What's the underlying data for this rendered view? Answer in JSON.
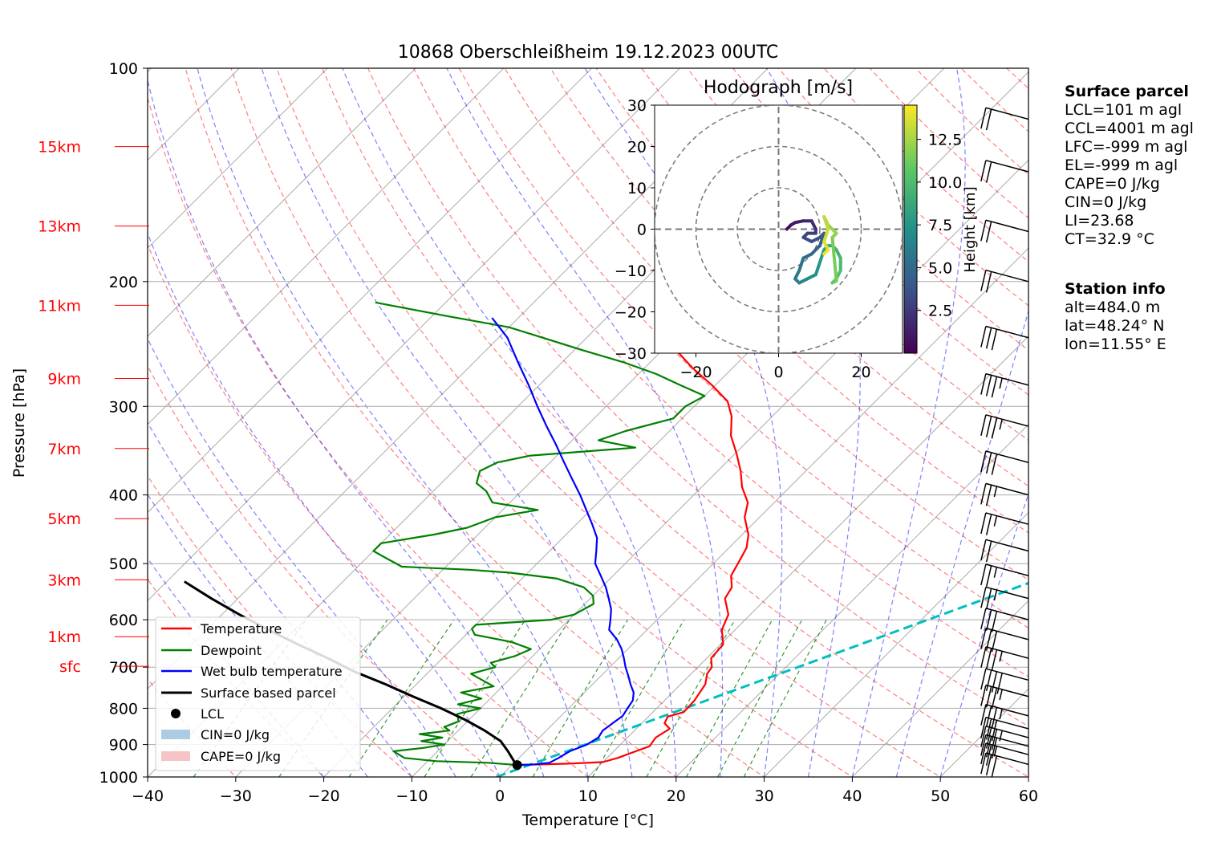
{
  "chart_data": [
    {
      "type": "line",
      "title": "10868 Oberschleißheim 19.12.2023 00UTC",
      "xlabel": "Temperature [°C]",
      "ylabel": "Pressure [hPa]",
      "xlim": [
        -40,
        60
      ],
      "ylim": [
        1000,
        100
      ],
      "y_scale": "log",
      "skew": true,
      "grid": true,
      "x_ticks": [
        "−40",
        "−30",
        "−20",
        "−10",
        "0",
        "10",
        "20",
        "30",
        "40",
        "50",
        "60"
      ],
      "y_ticks": [
        "100",
        "200",
        "300",
        "400",
        "500",
        "600",
        "700",
        "800",
        "900",
        "1000"
      ],
      "height_labels": [
        {
          "label": "15km",
          "p": 129
        },
        {
          "label": "13km",
          "p": 167
        },
        {
          "label": "11km",
          "p": 216
        },
        {
          "label": "9km",
          "p": 274
        },
        {
          "label": "7km",
          "p": 344
        },
        {
          "label": "5km",
          "p": 432
        },
        {
          "label": "3km",
          "p": 527
        },
        {
          "label": "1km",
          "p": 634
        },
        {
          "label": "sfc",
          "p": 698
        }
      ],
      "series": [
        {
          "name": "Temperature",
          "color": "#ff0000",
          "points": [
            [
              0.6,
              962
            ],
            [
              6,
              958
            ],
            [
              10,
              953
            ],
            [
              11.2,
              940
            ],
            [
              12.5,
              920
            ],
            [
              13.5,
              905
            ],
            [
              13.2,
              880
            ],
            [
              13.8,
              855
            ],
            [
              12.6,
              840
            ],
            [
              12.2,
              822
            ],
            [
              13.5,
              810
            ],
            [
              13.4,
              780
            ],
            [
              13.1,
              760
            ],
            [
              12.8,
              740
            ],
            [
              11.8,
              715
            ],
            [
              11.6,
              700
            ],
            [
              10.5,
              680
            ],
            [
              10.3,
              650
            ],
            [
              8.5,
              620
            ],
            [
              7.5,
              590
            ],
            [
              5.3,
              560
            ],
            [
              4.8,
              540
            ],
            [
              3.4,
              520
            ],
            [
              2.8,
              500
            ],
            [
              2.0,
              475
            ],
            [
              0.7,
              455
            ],
            [
              -1.7,
              430
            ],
            [
              -3.0,
              410
            ],
            [
              -5.4,
              390
            ],
            [
              -7.4,
              370
            ],
            [
              -9.8,
              350
            ],
            [
              -12.5,
              330
            ],
            [
              -14.6,
              310
            ],
            [
              -16.8,
              295
            ],
            [
              -20.4,
              280
            ],
            [
              -24.5,
              265
            ],
            [
              -28.4,
              250
            ]
          ]
        },
        {
          "name": "Dewpoint",
          "color": "#008000",
          "points": [
            [
              0.6,
              962
            ],
            [
              -3,
              955
            ],
            [
              -9,
              950
            ],
            [
              -13,
              940
            ],
            [
              -15,
              920
            ],
            [
              -12,
              910
            ],
            [
              -10,
              900
            ],
            [
              -13,
              890
            ],
            [
              -11,
              880
            ],
            [
              -14,
              870
            ],
            [
              -11,
              860
            ],
            [
              -12,
              850
            ],
            [
              -11,
              835
            ],
            [
              -12,
              815
            ],
            [
              -10,
              800
            ],
            [
              -13,
              790
            ],
            [
              -11,
              775
            ],
            [
              -14,
              760
            ],
            [
              -11,
              745
            ],
            [
              -13,
              730
            ],
            [
              -15,
              715
            ],
            [
              -13,
              700
            ],
            [
              -14,
              690
            ],
            [
              -12,
              675
            ],
            [
              -11,
              660
            ],
            [
              -14,
              645
            ],
            [
              -19,
              630
            ],
            [
              -20,
              618
            ],
            [
              -20,
              610
            ],
            [
              -12,
              600
            ],
            [
              -10,
              590
            ],
            [
              -9,
              570
            ],
            [
              -10,
              555
            ],
            [
              -12,
              540
            ],
            [
              -16,
              525
            ],
            [
              -22,
              515
            ],
            [
              -27,
              510
            ],
            [
              -35,
              505
            ],
            [
              -38,
              490
            ],
            [
              -40,
              480
            ],
            [
              -40,
              468
            ],
            [
              -35,
              455
            ],
            [
              -32,
              445
            ],
            [
              -30,
              430
            ],
            [
              -26,
              420
            ],
            [
              -32,
              410
            ],
            [
              -34,
              395
            ],
            [
              -36,
              385
            ],
            [
              -37,
              370
            ],
            [
              -36,
              360
            ],
            [
              -33,
              352
            ],
            [
              -22,
              343
            ],
            [
              -27,
              335
            ],
            [
              -25,
              325
            ],
            [
              -21,
              312
            ],
            [
              -21,
              300
            ],
            [
              -20,
              290
            ],
            [
              -24,
              280
            ],
            [
              -28,
              270
            ],
            [
              -33,
              260
            ],
            [
              -39,
              250
            ],
            [
              -45,
              240
            ],
            [
              -50,
              232
            ],
            [
              -58,
              224
            ],
            [
              -63,
              219
            ],
            [
              -68,
              214
            ]
          ]
        },
        {
          "name": "Wet bulb temperature",
          "color": "#0000ff",
          "points": [
            [
              0.6,
              962
            ],
            [
              2.5,
              960
            ],
            [
              4,
              955
            ],
            [
              4.5,
              940
            ],
            [
              5.0,
              920
            ],
            [
              6.2,
              900
            ],
            [
              6.7,
              880
            ],
            [
              6.4,
              860
            ],
            [
              6.7,
              840
            ],
            [
              7.0,
              820
            ],
            [
              6.7,
              800
            ],
            [
              6.4,
              780
            ],
            [
              5.6,
              760
            ],
            [
              4.3,
              740
            ],
            [
              3.1,
              720
            ],
            [
              1.8,
              700
            ],
            [
              0.6,
              680
            ],
            [
              -0.7,
              660
            ],
            [
              -2.3,
              640
            ],
            [
              -4.3,
              620
            ],
            [
              -5.3,
              600
            ],
            [
              -6.4,
              580
            ],
            [
              -7.9,
              560
            ],
            [
              -9.5,
              540
            ],
            [
              -11.4,
              520
            ],
            [
              -13.4,
              500
            ],
            [
              -14.7,
              480
            ],
            [
              -16.1,
              460
            ],
            [
              -18.2,
              440
            ],
            [
              -20.5,
              420
            ],
            [
              -22.9,
              400
            ],
            [
              -25.6,
              380
            ],
            [
              -28.4,
              360
            ],
            [
              -31.3,
              340
            ],
            [
              -34.5,
              320
            ],
            [
              -37.8,
              300
            ],
            [
              -41.2,
              280
            ],
            [
              -45,
              260
            ],
            [
              -49,
              240
            ],
            [
              -53,
              225
            ]
          ]
        },
        {
          "name": "Surface based parcel",
          "color": "#000000",
          "points": [
            [
              0.6,
              962
            ],
            [
              -0.2,
              950
            ],
            [
              -2,
              920
            ],
            [
              -4,
              890
            ],
            [
              -7,
              860
            ],
            [
              -10.5,
              830
            ],
            [
              -14.5,
              800
            ],
            [
              -19,
              770
            ],
            [
              -23.5,
              740
            ],
            [
              -28.5,
              710
            ],
            [
              -33,
              680
            ],
            [
              -38,
              650
            ],
            [
              -43,
              620
            ],
            [
              -48,
              590
            ],
            [
              -53,
              560
            ],
            [
              -58,
              530
            ]
          ]
        }
      ],
      "lcl": {
        "label": "LCL",
        "t": 0.6,
        "p": 962
      },
      "legend": {
        "position": "lower-left",
        "entries": [
          "Temperature",
          "Dewpoint",
          "Wet bulb temperature",
          "Surface based parcel",
          "LCL",
          "CIN=0 J/kg",
          "CAPE=0 J/kg"
        ]
      },
      "shading": [
        {
          "name": "CIN=0 J/kg",
          "color": "#aecbe4"
        },
        {
          "name": "CAPE=0 J/kg",
          "color": "#f5a3a3"
        }
      ],
      "reference_line": {
        "color": "#00bfbf",
        "style": "dashed",
        "from": [
          -0.4,
          1000
        ],
        "to": [
          140,
          100
        ]
      },
      "wind_barbs": [
        {
          "p": 960,
          "spd": 30
        },
        {
          "p": 930,
          "spd": 25
        },
        {
          "p": 905,
          "spd": 30
        },
        {
          "p": 880,
          "spd": 35
        },
        {
          "p": 855,
          "spd": 30
        },
        {
          "p": 820,
          "spd": 35
        },
        {
          "p": 770,
          "spd": 35
        },
        {
          "p": 730,
          "spd": 40
        },
        {
          "p": 680,
          "spd": 35
        },
        {
          "p": 640,
          "spd": 30
        },
        {
          "p": 600,
          "spd": 30
        },
        {
          "p": 560,
          "spd": 25
        },
        {
          "p": 520,
          "spd": 25
        },
        {
          "p": 480,
          "spd": 20
        },
        {
          "p": 440,
          "spd": 25
        },
        {
          "p": 400,
          "spd": 25
        },
        {
          "p": 360,
          "spd": 30
        },
        {
          "p": 320,
          "spd": 35
        },
        {
          "p": 280,
          "spd": 35
        },
        {
          "p": 240,
          "spd": 30
        },
        {
          "p": 200,
          "spd": 20
        },
        {
          "p": 170,
          "spd": 20
        },
        {
          "p": 140,
          "spd": 20
        },
        {
          "p": 118,
          "spd": 20
        }
      ]
    },
    {
      "type": "scatter",
      "title": "Hodograph [m/s]",
      "xlim": [
        -30,
        30
      ],
      "ylim": [
        -30,
        30
      ],
      "x_ticks": [
        "−20",
        "0",
        "20"
      ],
      "y_ticks": [
        "30",
        "20",
        "10",
        "0",
        "−10",
        "−20",
        "−30"
      ],
      "rings": [
        10,
        20,
        30
      ],
      "colorbar": {
        "label": "Height [km]",
        "ticks": [
          "2.5",
          "5.0",
          "7.5",
          "10.0",
          "12.5"
        ],
        "range": [
          0,
          14.5
        ]
      },
      "points": [
        [
          2,
          0,
          0.2
        ],
        [
          3,
          1,
          0.5
        ],
        [
          4,
          1.6,
          0.9
        ],
        [
          6,
          2,
          1.3
        ],
        [
          8,
          2,
          1.7
        ],
        [
          9,
          0,
          2.0
        ],
        [
          9,
          -1,
          2.3
        ],
        [
          7,
          -1,
          2.6
        ],
        [
          6,
          -2,
          2.9
        ],
        [
          8,
          -3,
          3.2
        ],
        [
          10,
          -2,
          3.5
        ],
        [
          11,
          -1,
          3.8
        ],
        [
          10,
          -4,
          4.2
        ],
        [
          8,
          -6,
          4.6
        ],
        [
          6,
          -7,
          5.0
        ],
        [
          5,
          -10,
          5.4
        ],
        [
          4,
          -12,
          5.8
        ],
        [
          5,
          -13,
          6.2
        ],
        [
          7,
          -12,
          6.6
        ],
        [
          9,
          -11,
          7.0
        ],
        [
          10,
          -8,
          7.4
        ],
        [
          11,
          -5,
          7.8
        ],
        [
          12,
          -4,
          8.2
        ],
        [
          13,
          -4,
          8.6
        ],
        [
          14,
          -5,
          9.0
        ],
        [
          15,
          -7,
          9.4
        ],
        [
          15,
          -10,
          9.8
        ],
        [
          14,
          -12,
          10.2
        ],
        [
          13,
          -13,
          10.6
        ],
        [
          14,
          -12.5,
          11.0
        ],
        [
          13,
          -2,
          11.4
        ],
        [
          14,
          -1,
          11.8
        ],
        [
          12,
          1,
          12.2
        ],
        [
          11,
          3,
          12.6
        ],
        [
          12,
          0,
          13.0
        ],
        [
          11,
          -3,
          13.4
        ],
        [
          12,
          -5,
          13.8
        ],
        [
          11,
          -6,
          14.2
        ]
      ]
    }
  ],
  "surface_parcel": {
    "title": "Surface parcel",
    "lines": [
      "LCL=101 m agl",
      "CCL=4001 m agl",
      "LFC=-999 m agl",
      "EL=-999 m agl",
      "CAPE=0 J/kg",
      "CIN=0 J/kg",
      "LI=23.68",
      "CT=32.9 °C"
    ]
  },
  "station_info": {
    "title": "Station info",
    "lines": [
      "alt=484.0 m",
      "lat=48.24° N",
      "lon=11.55° E"
    ]
  }
}
